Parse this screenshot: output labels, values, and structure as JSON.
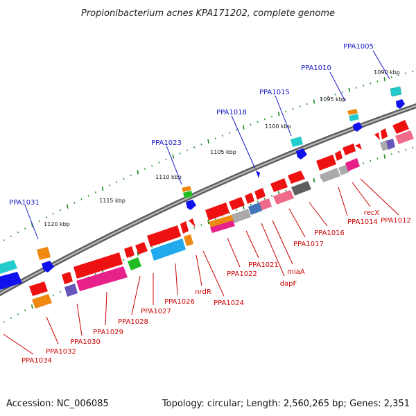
{
  "title": "Propionibacterium acnes KPA171202, complete genome",
  "accession": "Accession: NC_006085",
  "topology": "Topology: circular; Length: 2,560,265 bp; Genes: 2,351",
  "colors": {
    "backbone": "#8a8a8a",
    "tick": "#1a8a1a",
    "top_label": "#1414c8",
    "bottom_label": "#cc0000",
    "red": "#ee1111",
    "pink": "#f06a8a",
    "magenta": "#e8208a",
    "gray": "#aaaaaa",
    "darkgray": "#5f5f5f",
    "cyan": "#22cccc",
    "skyblue": "#22aaee",
    "blue": "#1111ee",
    "orange": "#ee8811",
    "green": "#22bb22",
    "purple": "#6655bb",
    "steelblue": "#4477bb"
  },
  "kbp_labels": [
    "1090 kbp",
    "1095 kbp",
    "1100 kbp",
    "1105 kbp",
    "1110 kbp",
    "1115 kbp",
    "1120 kbp"
  ],
  "top_genes": [
    "PPA1005",
    "PPA1010",
    "PPA1015",
    "PPA1018",
    "PPA1023",
    "PPA1031"
  ],
  "bottom_genes": [
    "PPA1012",
    "recX",
    "PPA1014",
    "PPA1016",
    "PPA1017",
    "miaA",
    "dapF",
    "PPA1021",
    "PPA1022",
    "PPA1024",
    "nrdR",
    "PPA1026",
    "PPA1027",
    "PPA1028",
    "PPA1029",
    "PPA1030",
    "PPA1032",
    "PPA1034"
  ]
}
